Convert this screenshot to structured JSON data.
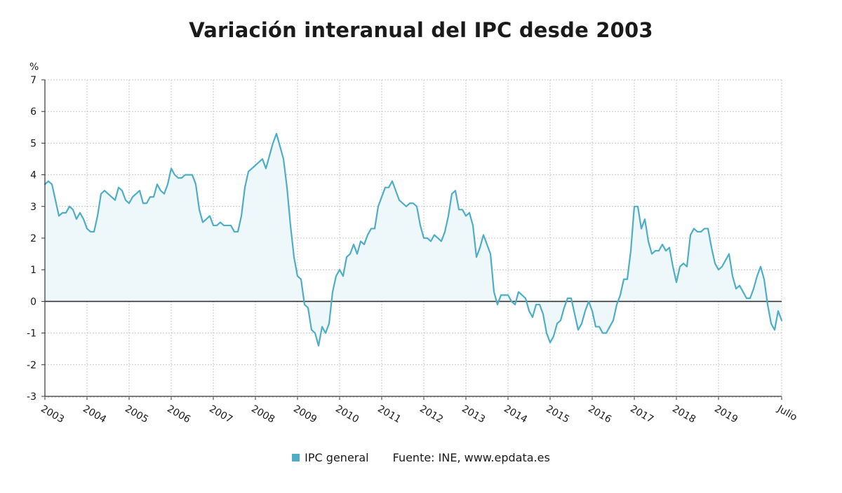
{
  "colors": {
    "line": "#4eaec6",
    "area": "#eef7fa",
    "grid": "#c8c8c8",
    "axis": "#333333",
    "zero": "#333333",
    "text": "#1a1a1a"
  },
  "footer": {
    "legend_label": "IPC general",
    "source": "Fuente: INE, www.epdata.es"
  },
  "chart_data": {
    "type": "area",
    "title": "Variación interanual del IPC desde 2003",
    "ylabel": "%",
    "xlabel": "",
    "ylim": [
      -3,
      7
    ],
    "yticks": [
      7,
      6,
      5,
      4,
      3,
      2,
      1,
      0,
      -1,
      -2,
      -3
    ],
    "grid": true,
    "legend_position": "bottom",
    "x_tick_labels": [
      "2003",
      "2004",
      "2005",
      "2006",
      "2007",
      "2008",
      "2009",
      "2010",
      "2011",
      "2012",
      "2013",
      "2014",
      "2015",
      "2016",
      "2017",
      "2018",
      "2019",
      "Julio"
    ],
    "x_start": "2003-01",
    "x_end": "2020-07",
    "series": [
      {
        "name": "IPC general",
        "values": [
          3.7,
          3.8,
          3.7,
          3.2,
          2.7,
          2.8,
          2.8,
          3.0,
          2.9,
          2.6,
          2.8,
          2.6,
          2.3,
          2.2,
          2.2,
          2.7,
          3.4,
          3.5,
          3.4,
          3.3,
          3.2,
          3.6,
          3.5,
          3.2,
          3.1,
          3.3,
          3.4,
          3.5,
          3.1,
          3.1,
          3.3,
          3.3,
          3.7,
          3.5,
          3.4,
          3.7,
          4.2,
          4.0,
          3.9,
          3.9,
          4.0,
          4.0,
          4.0,
          3.7,
          2.9,
          2.5,
          2.6,
          2.7,
          2.4,
          2.4,
          2.5,
          2.4,
          2.4,
          2.4,
          2.2,
          2.2,
          2.7,
          3.6,
          4.1,
          4.2,
          4.3,
          4.4,
          4.5,
          4.2,
          4.6,
          5.0,
          5.3,
          4.9,
          4.5,
          3.6,
          2.4,
          1.4,
          0.8,
          0.7,
          -0.1,
          -0.2,
          -0.9,
          -1.0,
          -1.4,
          -0.8,
          -1.0,
          -0.7,
          0.3,
          0.8,
          1.0,
          0.8,
          1.4,
          1.5,
          1.8,
          1.5,
          1.9,
          1.8,
          2.1,
          2.3,
          2.3,
          3.0,
          3.3,
          3.6,
          3.6,
          3.8,
          3.5,
          3.2,
          3.1,
          3.0,
          3.1,
          3.1,
          3.0,
          2.4,
          2.0,
          2.0,
          1.9,
          2.1,
          2.0,
          1.9,
          2.2,
          2.7,
          3.4,
          3.5,
          2.9,
          2.9,
          2.7,
          2.8,
          2.4,
          1.4,
          1.7,
          2.1,
          1.8,
          1.5,
          0.3,
          -0.1,
          0.2,
          0.2,
          0.2,
          0.0,
          -0.1,
          0.3,
          0.2,
          0.1,
          -0.3,
          -0.5,
          -0.1,
          -0.1,
          -0.4,
          -1.0,
          -1.3,
          -1.1,
          -0.7,
          -0.6,
          -0.2,
          0.1,
          0.1,
          -0.4,
          -0.9,
          -0.7,
          -0.3,
          0.0,
          -0.3,
          -0.8,
          -0.8,
          -1.0,
          -1.0,
          -0.8,
          -0.6,
          -0.1,
          0.2,
          0.7,
          0.7,
          1.6,
          3.0,
          3.0,
          2.3,
          2.6,
          1.9,
          1.5,
          1.6,
          1.6,
          1.8,
          1.6,
          1.7,
          1.1,
          0.6,
          1.1,
          1.2,
          1.1,
          2.1,
          2.3,
          2.2,
          2.2,
          2.3,
          2.3,
          1.7,
          1.2,
          1.0,
          1.1,
          1.3,
          1.5,
          0.8,
          0.4,
          0.5,
          0.3,
          0.1,
          0.1,
          0.4,
          0.8,
          1.1,
          0.7,
          -0.1,
          -0.7,
          -0.9,
          -0.3,
          -0.6
        ]
      }
    ]
  }
}
